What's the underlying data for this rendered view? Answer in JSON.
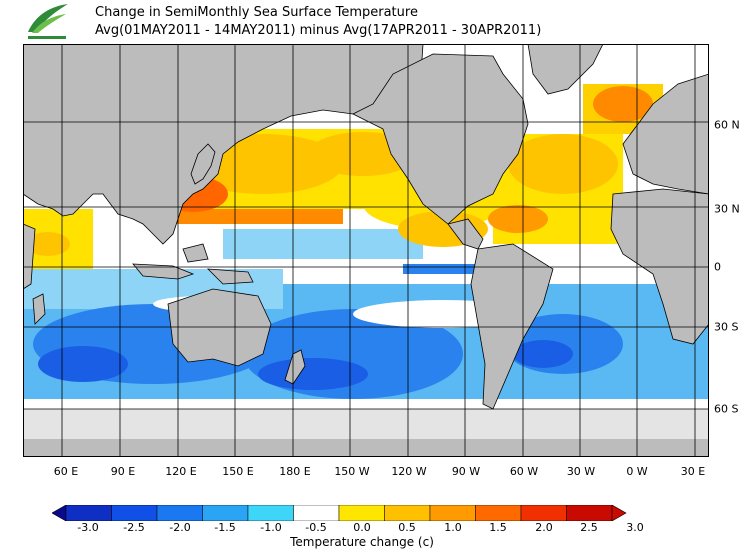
{
  "header": {
    "title_line1": "Change in SemiMonthly Sea Surface Temperature",
    "title_line2": "Avg(01MAY2011 - 14MAY2011) minus Avg(17APR2011 - 30APR2011)"
  },
  "logo": {
    "icon": "leaf-logo-icon"
  },
  "map": {
    "lon_labels": [
      "60 E",
      "90 E",
      "120 E",
      "150 E",
      "180 E",
      "150 W",
      "120 W",
      "90 W",
      "60 W",
      "30 W",
      "0 W",
      "30 E"
    ],
    "lat_labels": [
      "60 N",
      "30 N",
      "0",
      "30 S",
      "60 S"
    ],
    "colors": {
      "land": "#bcbcbc",
      "ice": "#e4e4e4",
      "grid": "#000000"
    }
  },
  "colorbar": {
    "labels": [
      "-3.0",
      "-2.5",
      "-2.0",
      "-1.5",
      "-1.0",
      "-0.5",
      "0.0",
      "0.5",
      "1.0",
      "1.5",
      "2.0",
      "2.5",
      "3.0"
    ],
    "colors": [
      "#0a0a8c",
      "#0e2ec4",
      "#1050e6",
      "#1a78f0",
      "#2aa4f4",
      "#3ed6f8",
      "#ffffff",
      "#ffe600",
      "#ffc000",
      "#ff9a00",
      "#ff6a00",
      "#f03000",
      "#c80a00",
      "#c80a00"
    ],
    "units_label": "Temperature change (c)"
  }
}
